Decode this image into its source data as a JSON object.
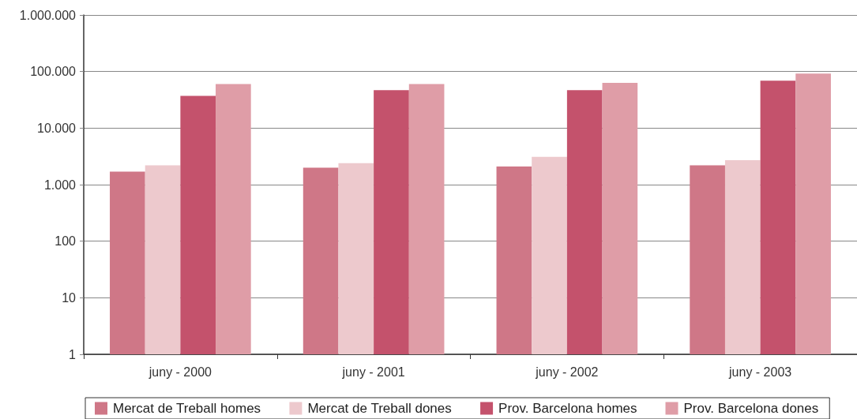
{
  "chart_data": {
    "type": "bar",
    "categories": [
      "juny - 2000",
      "juny - 2001",
      "juny - 2002",
      "juny - 2003"
    ],
    "series": [
      {
        "name": "Mercat de Treball homes",
        "color": "#cf7787",
        "values": [
          1700,
          2000,
          2100,
          2200
        ]
      },
      {
        "name": "Mercat de Treball dones",
        "color": "#edc9cd",
        "values": [
          2200,
          2400,
          3100,
          2700
        ]
      },
      {
        "name": "Prov. Barcelona homes",
        "color": "#c4526c",
        "values": [
          37000,
          47000,
          47000,
          69000
        ]
      },
      {
        "name": "Prov. Barcelona dones",
        "color": "#df9da7",
        "values": [
          60000,
          60000,
          63000,
          92000
        ]
      }
    ],
    "log": "y",
    "ylim": [
      1,
      1000000
    ],
    "yticks": [
      1,
      10,
      100,
      {
        "value": 1000,
        "label": "1.000"
      },
      {
        "value": 10000,
        "label": "10.000"
      },
      {
        "value": 100000,
        "label": "100.000"
      },
      {
        "value": 1000000,
        "label": "1.000.000"
      }
    ],
    "grid": "y",
    "legend": "bottom"
  }
}
